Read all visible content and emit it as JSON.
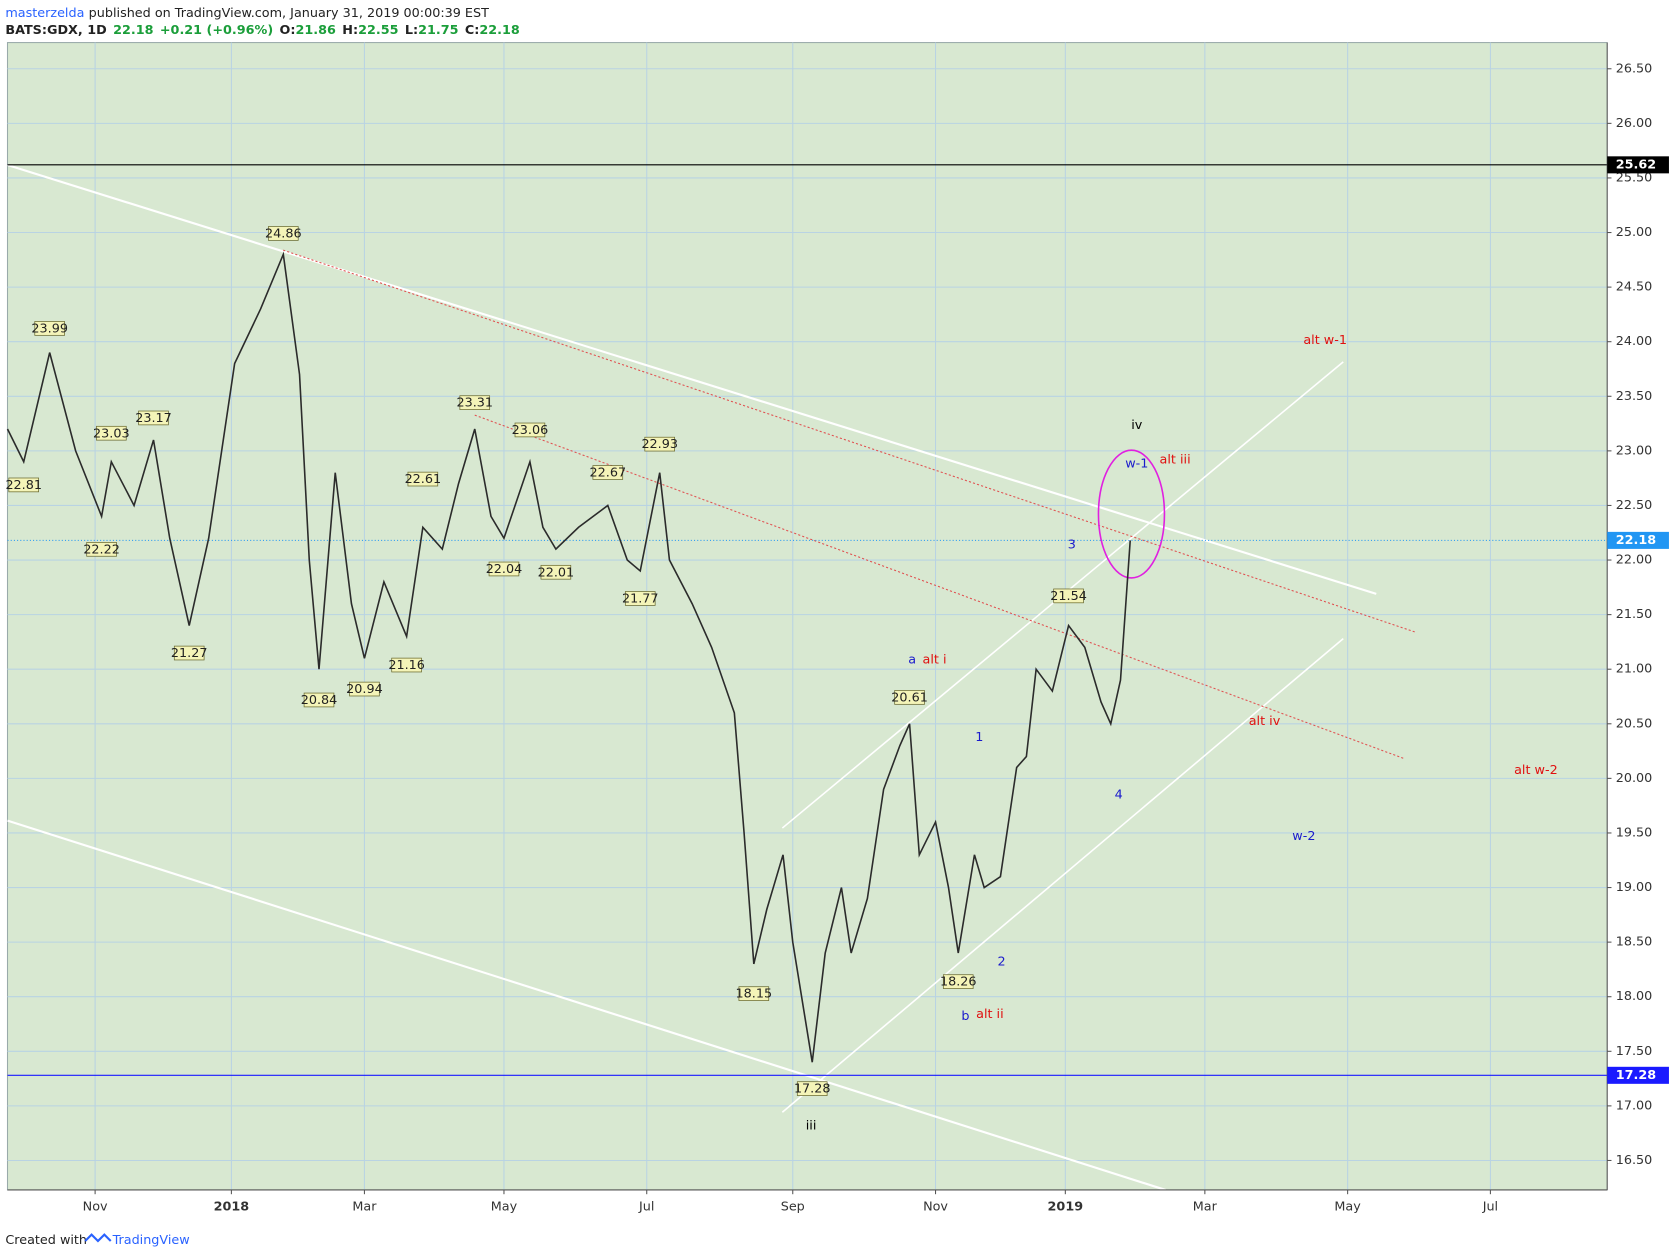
{
  "header": {
    "author": "masterzelda",
    "published": "published on TradingView.com, January 31, 2019 00:00:39 EST",
    "symbol": "BATS:GDX, 1D",
    "change": "+0.21 (+0.96%)",
    "o_label": "O:",
    "h_label": "H:",
    "l_label": "L:",
    "c_label": "C:"
  },
  "footer": {
    "created": "Created with",
    "brand": "TradingView"
  },
  "chart_data": {
    "type": "line",
    "color": "#2b2b2b",
    "ohlc": {
      "open": 21.86,
      "high": 22.55,
      "low": 21.75,
      "close": 22.18
    },
    "x": [
      0,
      5,
      13,
      21,
      29,
      32,
      39,
      45,
      50,
      56,
      62,
      70,
      78,
      85,
      90,
      93,
      96,
      101,
      106,
      110,
      116,
      123,
      128,
      134,
      139,
      144,
      149,
      153,
      161,
      165,
      169,
      176,
      185,
      191,
      195,
      201,
      204,
      211,
      217,
      224,
      227,
      230,
      234,
      239,
      242,
      248,
      252,
      257,
      260,
      265,
      270,
      275,
      278,
      281,
      286,
      290,
      293,
      298,
      301,
      306,
      311,
      314,
      317,
      322,
      327,
      332,
      337,
      340,
      343,
      346
    ],
    "values": [
      23.2,
      22.9,
      23.9,
      23.0,
      22.4,
      22.9,
      22.5,
      23.1,
      22.2,
      21.4,
      22.2,
      23.8,
      24.3,
      24.8,
      23.7,
      22.0,
      21.0,
      22.8,
      21.6,
      21.1,
      21.8,
      21.3,
      22.3,
      22.1,
      22.7,
      23.2,
      22.4,
      22.2,
      22.9,
      22.3,
      22.1,
      22.3,
      22.5,
      22.0,
      21.9,
      22.8,
      22.0,
      21.6,
      21.2,
      20.6,
      19.5,
      18.3,
      18.8,
      19.3,
      18.5,
      17.4,
      18.4,
      19.0,
      18.4,
      18.9,
      19.9,
      20.3,
      20.5,
      19.3,
      19.6,
      19.0,
      18.4,
      19.3,
      19.0,
      19.1,
      20.1,
      20.2,
      21.0,
      20.8,
      21.4,
      21.2,
      20.7,
      20.5,
      20.9,
      22.18
    ],
    "xlim": [
      0,
      493
    ],
    "xticks": [
      {
        "value": 27,
        "label": "Nov"
      },
      {
        "value": 69,
        "label": "2018"
      },
      {
        "value": 110,
        "label": "Mar"
      },
      {
        "value": 153,
        "label": "May"
      },
      {
        "value": 197,
        "label": "Jul"
      },
      {
        "value": 242,
        "label": "Sep"
      },
      {
        "value": 286,
        "label": "Nov"
      },
      {
        "value": 326,
        "label": "2019"
      },
      {
        "value": 369,
        "label": "Mar"
      },
      {
        "value": 413,
        "label": "May"
      },
      {
        "value": 457,
        "label": "Jul"
      }
    ],
    "ylim": [
      16.23,
      26.74
    ],
    "yticks": [
      {
        "value": 16.5,
        "label": "16.50"
      },
      {
        "value": 17,
        "label": "17.00"
      },
      {
        "value": 17.5,
        "label": "17.50"
      },
      {
        "value": 18,
        "label": "18.00"
      },
      {
        "value": 18.5,
        "label": "18.50"
      },
      {
        "value": 19,
        "label": "19.00"
      },
      {
        "value": 19.5,
        "label": "19.50"
      },
      {
        "value": 20,
        "label": "20.00"
      },
      {
        "value": 20.5,
        "label": "20.50"
      },
      {
        "value": 21,
        "label": "21.00"
      },
      {
        "value": 21.5,
        "label": "21.50"
      },
      {
        "value": 22,
        "label": "22.00"
      },
      {
        "value": 22.5,
        "label": "22.50"
      },
      {
        "value": 23,
        "label": "23.00"
      },
      {
        "value": 23.5,
        "label": "23.50"
      },
      {
        "value": 24,
        "label": "24.00"
      },
      {
        "value": 24.5,
        "label": "24.50"
      },
      {
        "value": 25,
        "label": "25.00"
      },
      {
        "value": 25.5,
        "label": "25.50"
      },
      {
        "value": 26,
        "label": "26.00"
      },
      {
        "value": 26.5,
        "label": "26.50"
      }
    ],
    "grid": true,
    "hlines": [
      {
        "value": 25.62,
        "color": "#000000"
      },
      {
        "value": 17.28,
        "color": "#1a1aff"
      }
    ],
    "pivots": [
      {
        "x": 13,
        "value": 23.99,
        "side": "up"
      },
      {
        "x": 5,
        "value": 22.81,
        "side": "down"
      },
      {
        "x": 32,
        "value": 23.03,
        "side": "up"
      },
      {
        "x": 29,
        "value": 22.22,
        "side": "down"
      },
      {
        "x": 45,
        "value": 23.17,
        "side": "up"
      },
      {
        "x": 56,
        "value": 21.27,
        "side": "down"
      },
      {
        "x": 85,
        "value": 24.86,
        "side": "up"
      },
      {
        "x": 96,
        "value": 20.84,
        "side": "down"
      },
      {
        "x": 110,
        "value": 20.94,
        "side": "down"
      },
      {
        "x": 144,
        "value": 23.31,
        "side": "up"
      },
      {
        "x": 123,
        "value": 21.16,
        "side": "down"
      },
      {
        "x": 128,
        "value": 22.61,
        "side": "up"
      },
      {
        "x": 161,
        "value": 23.06,
        "side": "up"
      },
      {
        "x": 153,
        "value": 22.04,
        "side": "down"
      },
      {
        "x": 169,
        "value": 22.01,
        "side": "down"
      },
      {
        "x": 185,
        "value": 22.67,
        "side": "up"
      },
      {
        "x": 195,
        "value": 21.77,
        "side": "down"
      },
      {
        "x": 201,
        "value": 22.93,
        "side": "up"
      },
      {
        "x": 230,
        "value": 18.15,
        "side": "down"
      },
      {
        "x": 248,
        "value": 17.28,
        "side": "down"
      },
      {
        "x": 278,
        "value": 20.61,
        "side": "up"
      },
      {
        "x": 293,
        "value": 18.26,
        "side": "down"
      },
      {
        "x": 327,
        "value": 21.54,
        "side": "up"
      }
    ],
    "annotations": [
      {
        "text": "iv",
        "color": "#000000"
      },
      {
        "text": "iii",
        "color": "#000000"
      },
      {
        "text": "w-1",
        "color": "#1a1acc"
      },
      {
        "text": "alt iii",
        "color": "#e01010"
      },
      {
        "text": "3",
        "color": "#1a1acc"
      },
      {
        "text": "a",
        "color": "#1a1acc"
      },
      {
        "text": "alt i",
        "color": "#e01010"
      },
      {
        "text": "1",
        "color": "#1a1acc"
      },
      {
        "text": "alt iv",
        "color": "#e01010"
      },
      {
        "text": "alt w-1",
        "color": "#e01010"
      },
      {
        "text": "alt w-2",
        "color": "#e01010"
      },
      {
        "text": "w-2",
        "color": "#1a1acc"
      },
      {
        "text": "4",
        "color": "#1a1acc"
      },
      {
        "text": "2",
        "color": "#1a1acc"
      },
      {
        "text": "b",
        "color": "#1a1acc"
      },
      {
        "text": "alt ii",
        "color": "#e01010"
      }
    ]
  }
}
